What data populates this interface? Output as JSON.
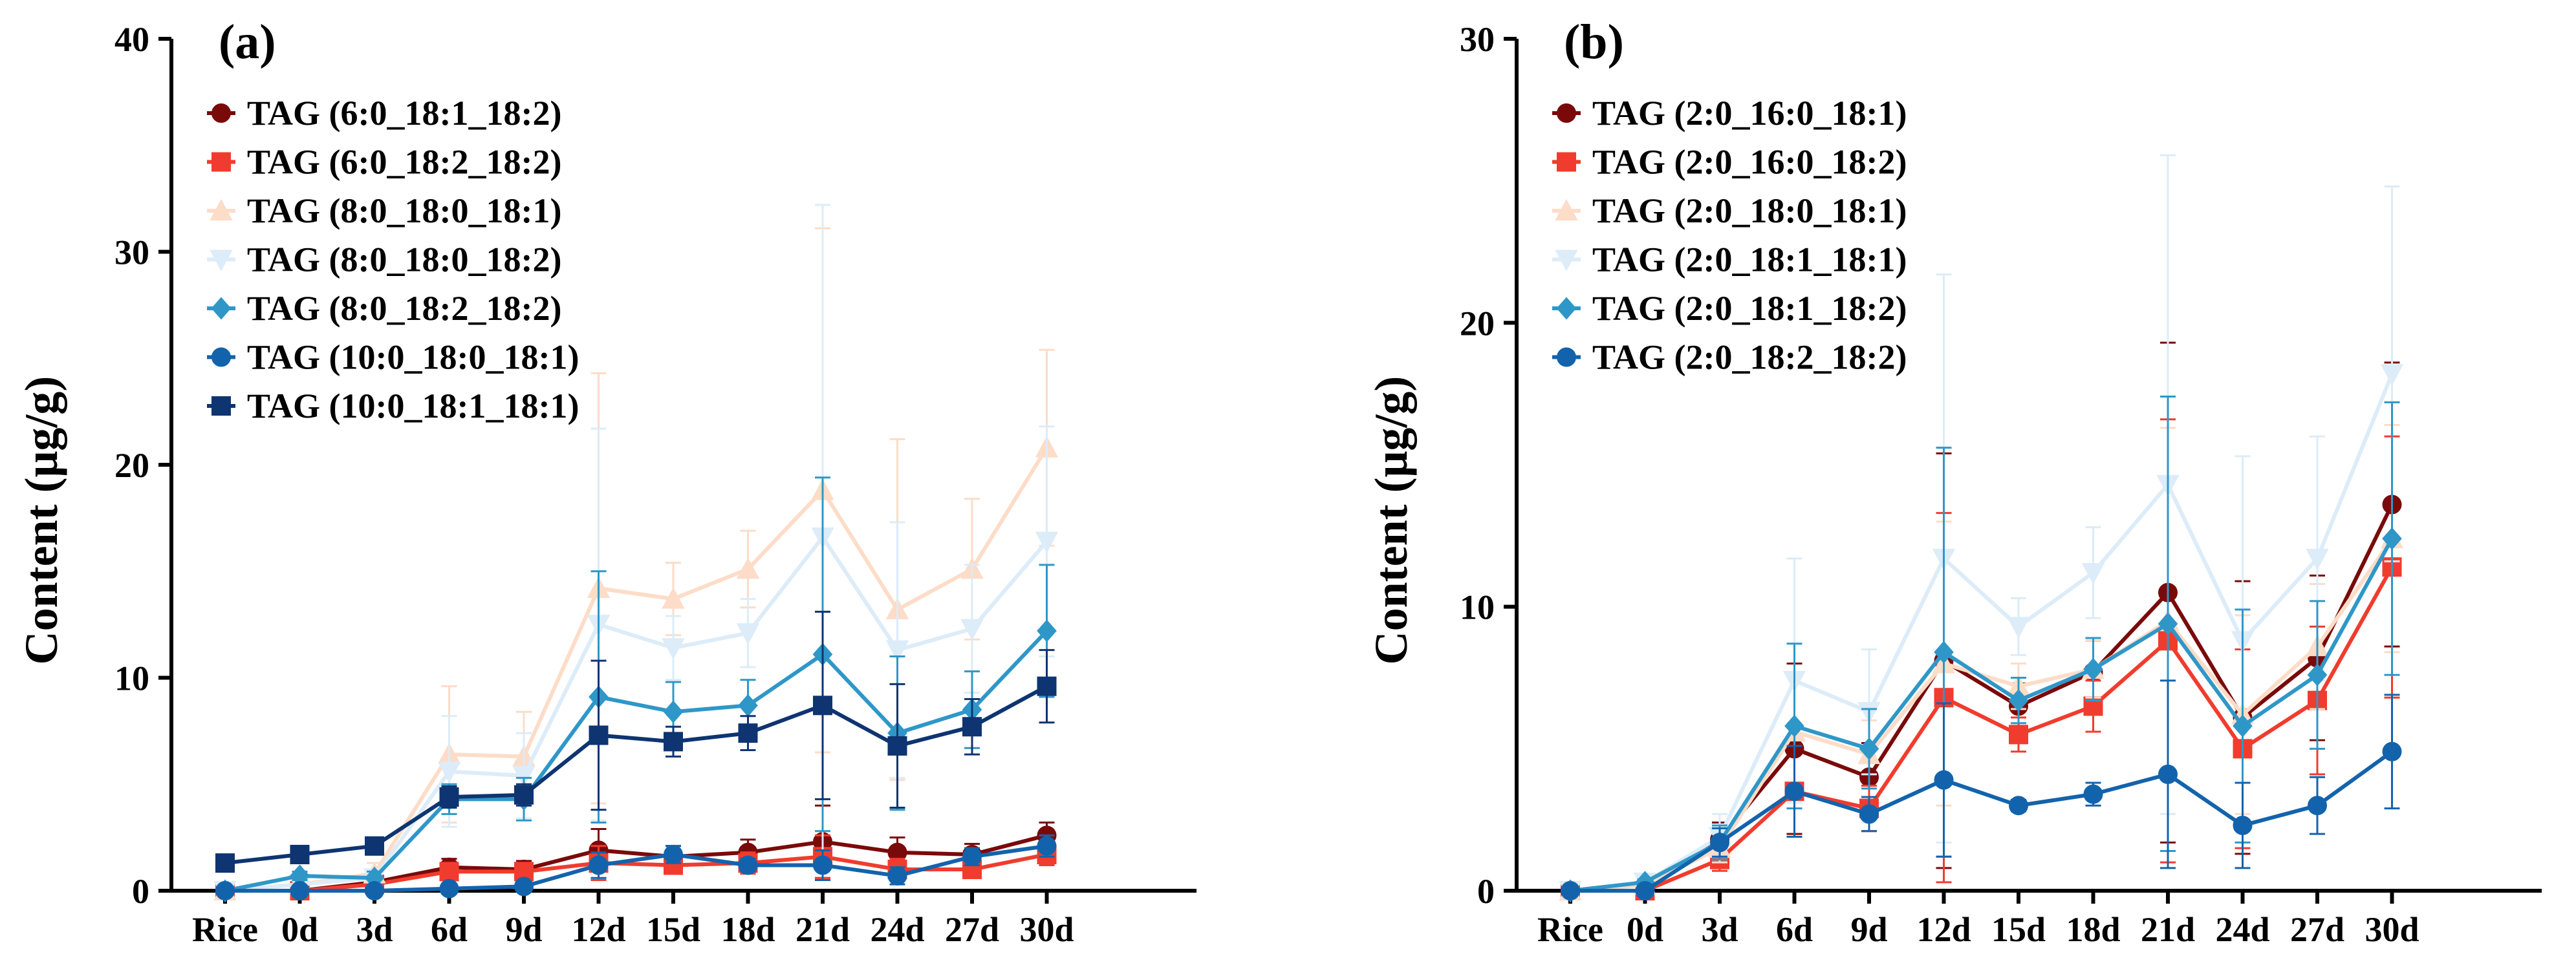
{
  "chart_data": [
    {
      "panel_label": "(a)",
      "type": "line",
      "ylabel": "Content (μg/g)",
      "xlabel": "",
      "ylim": [
        0,
        40
      ],
      "yticks": [
        0,
        10,
        20,
        30,
        40
      ],
      "categories": [
        "Rice",
        "0d",
        "3d",
        "6d",
        "9d",
        "12d",
        "15d",
        "18d",
        "21d",
        "24d",
        "27d",
        "30d"
      ],
      "legend_position": "top-left",
      "series": [
        {
          "name": "TAG (6:0_18:1_18:2)",
          "color": "#7a0a0a",
          "marker": "circle",
          "values": [
            0,
            0,
            0.4,
            1.1,
            1.0,
            1.9,
            1.6,
            1.8,
            2.3,
            1.8,
            1.7,
            2.6
          ],
          "errors": [
            0.1,
            0.1,
            0.2,
            0.4,
            0.4,
            1.0,
            0.5,
            0.6,
            1.7,
            0.7,
            0.5,
            0.6
          ]
        },
        {
          "name": "TAG (6:0_18:2_18:2)",
          "color": "#f03c2e",
          "marker": "square",
          "values": [
            0,
            0,
            0.3,
            0.9,
            0.9,
            1.3,
            1.2,
            1.3,
            1.6,
            1.0,
            1.0,
            1.7
          ],
          "errors": [
            0.1,
            0.1,
            0.2,
            0.4,
            0.3,
            0.8,
            0.4,
            0.5,
            1.0,
            0.5,
            0.4,
            0.5
          ]
        },
        {
          "name": "TAG (8:0_18:0_18:1)",
          "color": "#fddcc8",
          "marker": "triangle",
          "values": [
            0,
            0.3,
            0.8,
            6.4,
            6.3,
            14.2,
            13.7,
            15.1,
            18.8,
            13.2,
            15.1,
            20.8
          ],
          "errors": [
            0.1,
            0.2,
            0.5,
            3.2,
            2.1,
            10.1,
            1.7,
            1.8,
            12.3,
            8.0,
            3.3,
            4.6
          ]
        },
        {
          "name": "TAG (8:0_18:0_18:2)",
          "color": "#dcecf8",
          "marker": "triangle-down",
          "values": [
            0,
            0.3,
            0.6,
            5.6,
            5.4,
            12.5,
            11.4,
            12.1,
            16.6,
            11.3,
            12.3,
            16.4
          ],
          "errors": [
            0.1,
            0.2,
            0.4,
            2.6,
            2.0,
            9.2,
            1.5,
            1.6,
            15.6,
            6.0,
            3.0,
            5.4
          ]
        },
        {
          "name": "TAG (8:0_18:2_18:2)",
          "color": "#2f97c8",
          "marker": "diamond",
          "values": [
            0,
            0.7,
            0.6,
            4.3,
            4.3,
            9.1,
            8.4,
            8.7,
            11.1,
            7.4,
            8.5,
            12.2
          ],
          "errors": [
            0.1,
            0.2,
            0.3,
            0.7,
            1.0,
            5.9,
            1.4,
            1.2,
            8.3,
            3.6,
            1.8,
            3.1
          ]
        },
        {
          "name": "TAG (10:0_18:0_18:1)",
          "color": "#1363ac",
          "marker": "circle",
          "values": [
            0,
            0,
            0,
            0.1,
            0.2,
            1.2,
            1.7,
            1.2,
            1.2,
            0.7,
            1.6,
            2.1
          ],
          "errors": [
            0.05,
            0.05,
            0.05,
            0.1,
            0.1,
            0.6,
            0.4,
            0.3,
            0.7,
            0.4,
            0.4,
            0.5
          ]
        },
        {
          "name": "TAG (10:0_18:1_18:1)",
          "color": "#0e3471",
          "marker": "square",
          "values": [
            1.3,
            1.7,
            2.1,
            4.4,
            4.5,
            7.3,
            7.0,
            7.4,
            8.7,
            6.8,
            7.7,
            9.6
          ],
          "errors": [
            0.2,
            0.2,
            0.3,
            0.5,
            0.5,
            3.5,
            0.7,
            0.8,
            4.4,
            2.9,
            1.3,
            1.7
          ]
        }
      ]
    },
    {
      "panel_label": "(b)",
      "type": "line",
      "ylabel": "Content (μg/g)",
      "xlabel": "",
      "ylim": [
        0,
        30
      ],
      "yticks": [
        0,
        10,
        20,
        30
      ],
      "categories": [
        "Rice",
        "0d",
        "3d",
        "6d",
        "9d",
        "12d",
        "15d",
        "18d",
        "21d",
        "24d",
        "27d",
        "30d"
      ],
      "legend_position": "top-left",
      "series": [
        {
          "name": "TAG (2:0_16:0_18:1)",
          "color": "#7a0a0a",
          "marker": "circle",
          "values": [
            0,
            0,
            1.8,
            5.0,
            4.0,
            8.1,
            6.5,
            7.7,
            10.5,
            6.1,
            8.2,
            13.6
          ],
          "errors": [
            0.1,
            0.1,
            0.6,
            3.0,
            1.2,
            7.3,
            0.8,
            1.1,
            8.8,
            4.8,
            2.9,
            5.0
          ]
        },
        {
          "name": "TAG (2:0_16:0_18:2)",
          "color": "#f03c2e",
          "marker": "square",
          "values": [
            0,
            0,
            1.1,
            3.5,
            2.9,
            6.8,
            5.5,
            6.5,
            8.8,
            5.0,
            6.7,
            11.4
          ],
          "errors": [
            0.1,
            0.1,
            0.4,
            1.6,
            0.8,
            6.5,
            0.6,
            0.9,
            7.8,
            3.5,
            2.6,
            4.6
          ]
        },
        {
          "name": "TAG (2:0_18:0_18:1)",
          "color": "#fddcc8",
          "marker": "triangle",
          "values": [
            0,
            0.2,
            1.5,
            5.6,
            4.8,
            8.0,
            7.2,
            7.8,
            9.5,
            6.2,
            8.6,
            12.4
          ],
          "errors": [
            0.1,
            0.1,
            0.5,
            2.0,
            1.2,
            5.0,
            0.8,
            1.0,
            6.8,
            3.5,
            2.2,
            4.0
          ]
        },
        {
          "name": "TAG (2:0_18:1_18:1)",
          "color": "#dcecf8",
          "marker": "triangle-down",
          "values": [
            0,
            0.3,
            1.9,
            7.4,
            6.3,
            11.7,
            9.3,
            11.2,
            14.3,
            8.8,
            11.7,
            18.2
          ],
          "errors": [
            0.1,
            0.1,
            0.8,
            4.3,
            2.2,
            10.0,
            1.0,
            1.6,
            11.6,
            6.5,
            4.3,
            6.6
          ]
        },
        {
          "name": "TAG (2:0_18:1_18:2)",
          "color": "#2f97c8",
          "marker": "diamond",
          "values": [
            0,
            0.3,
            1.7,
            5.8,
            5.0,
            8.4,
            6.7,
            7.8,
            9.4,
            5.8,
            7.6,
            12.4
          ],
          "errors": [
            0.1,
            0.1,
            0.6,
            2.9,
            1.4,
            7.2,
            0.8,
            1.1,
            8.0,
            4.1,
            2.6,
            4.8
          ]
        },
        {
          "name": "TAG (2:0_18:2_18:2)",
          "color": "#1363ac",
          "marker": "circle",
          "values": [
            0,
            0,
            1.7,
            3.5,
            2.7,
            3.9,
            3.0,
            3.4,
            4.1,
            2.3,
            3.0,
            4.9
          ],
          "errors": [
            0.1,
            0.1,
            0.5,
            1.6,
            0.6,
            2.7,
            0.2,
            0.4,
            3.3,
            1.5,
            1.0,
            2.0
          ]
        }
      ]
    }
  ]
}
